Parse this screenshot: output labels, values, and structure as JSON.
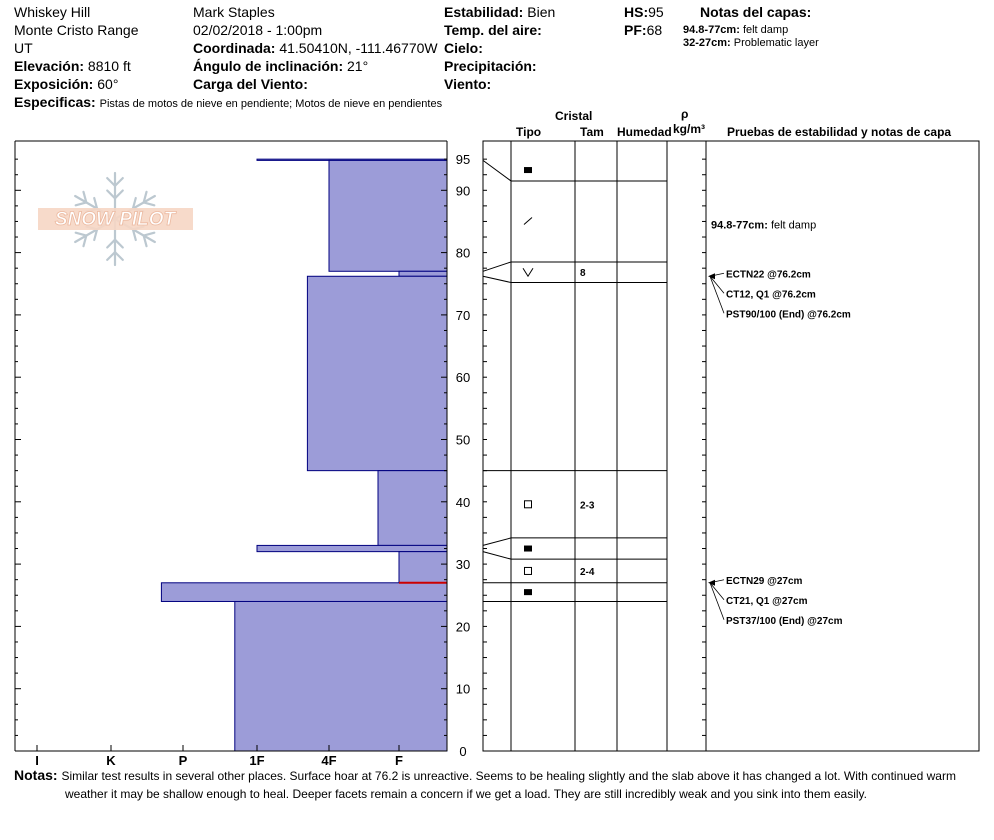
{
  "header": {
    "location": "Whiskey Hill",
    "range": "Monte Cristo Range",
    "state": "UT",
    "elevation_label": "Elevación:",
    "elevation_value": "8810 ft",
    "aspect_label": "Exposición:",
    "aspect_value": "60°",
    "specifics_label": "Especificas:",
    "specifics_value": "Pistas de motos de nieve en pendiente; Motos de nieve en pendientes",
    "observer": "Mark Staples",
    "datetime": "02/02/2018 - 1:00pm",
    "coord_label": "Coordinada:",
    "coord_value": "41.50410N, -111.46770W",
    "slope_label": "Ángulo de inclinación:",
    "slope_value": "21°",
    "wind_load_label": "Carga del Viento:",
    "stability_label": "Estabilidad:",
    "stability_value": "Bien",
    "air_temp_label": "Temp. del aire:",
    "sky_label": "Cielo:",
    "precip_label": "Precipitación:",
    "wind_label": "Viento:",
    "hs_label": "HS:",
    "hs_value": "95",
    "pf_label": "PF:",
    "pf_value": "68",
    "layer_notes_label": "Notas del capas:",
    "layer_notes": [
      {
        "range": "94.8-77cm:",
        "text": "felt damp"
      },
      {
        "range": "32-27cm:",
        "text": "Problematic layer"
      }
    ]
  },
  "logo_text": "SNOW PILOT",
  "columns": {
    "crystal": "Cristal",
    "type": "Tipo",
    "size": "Tam",
    "humidity": "Humedad",
    "rho": "ρ",
    "density_unit": "kg/m³",
    "tests": "Pruebas de estabilidad y notas de capa"
  },
  "chart_data": {
    "type": "bar",
    "x_categories": [
      "I",
      "K",
      "P",
      "1F",
      "4F",
      "F"
    ],
    "y_ticks": [
      0,
      10,
      20,
      30,
      40,
      50,
      60,
      70,
      80,
      90,
      95
    ],
    "ylim": [
      0,
      95
    ],
    "hardness_layers": [
      {
        "top": 95,
        "bottom": 94.8,
        "hardness": 3.0
      },
      {
        "top": 94.8,
        "bottom": 77,
        "hardness": 4.0
      },
      {
        "top": 77,
        "bottom": 76.2,
        "hardness": 5.0
      },
      {
        "top": 76.2,
        "bottom": 45,
        "hardness": 3.7
      },
      {
        "top": 45,
        "bottom": 33,
        "hardness": 4.7
      },
      {
        "top": 33,
        "bottom": 32,
        "hardness": 3.0
      },
      {
        "top": 32,
        "bottom": 27,
        "hardness": 5.0
      },
      {
        "top": 27,
        "bottom": 24,
        "hardness": 1.7
      },
      {
        "top": 24,
        "bottom": 0,
        "hardness": 2.7
      }
    ],
    "critical_layer_depth": 27,
    "grain_layers": [
      {
        "top": 95,
        "bottom": 91.5,
        "grain": "filled-square",
        "size": ""
      },
      {
        "top": 91.5,
        "bottom": 78.5,
        "grain": "slash",
        "size": ""
      },
      {
        "top": 78.5,
        "bottom": 75.2,
        "grain": "v",
        "size": "8"
      },
      {
        "top": 75.2,
        "bottom": 45,
        "grain": "",
        "size": ""
      },
      {
        "top": 45,
        "bottom": 34.2,
        "grain": "open-square",
        "size": "2-3"
      },
      {
        "top": 34.2,
        "bottom": 30.8,
        "grain": "filled-square",
        "size": ""
      },
      {
        "top": 30.8,
        "bottom": 27,
        "grain": "open-square",
        "size": "2-4"
      },
      {
        "top": 27,
        "bottom": 24,
        "grain": "filled-square",
        "size": ""
      }
    ],
    "profile_boundaries": [
      {
        "depth": 94.8,
        "grain_depth": 91.5
      },
      {
        "depth": 77,
        "grain_depth": 78.5
      },
      {
        "depth": 76.2,
        "grain_depth": 75.2
      },
      {
        "depth": 45,
        "grain_depth": 45
      },
      {
        "depth": 33,
        "grain_depth": 34.2
      },
      {
        "depth": 32,
        "grain_depth": 30.8
      },
      {
        "depth": 27,
        "grain_depth": 27
      },
      {
        "depth": 24,
        "grain_depth": 24
      }
    ],
    "layer_note_text": {
      "depth": 84.5,
      "range": "94.8-77cm:",
      "text": "felt damp"
    },
    "tests": [
      {
        "depth": 76.2,
        "results": [
          "ECTN22 @76.2cm",
          "CT12, Q1 @76.2cm",
          "PST90/100 (End) @76.2cm"
        ]
      },
      {
        "depth": 27,
        "results": [
          "ECTN29 @27cm",
          "CT21, Q1 @27cm",
          "PST37/100 (End) @27cm"
        ]
      }
    ],
    "colors": {
      "hardness_fill": "#9c9cd8",
      "hardness_edge": "#00007f",
      "critical_line": "#cc0000"
    }
  },
  "notes_label": "Notas:",
  "notes_line1": "Similar test results in several other places. Surface hoar at 76.2 is unreactive. Seems to be healing slightly and the slab above it has changed a lot. With continued warm",
  "notes_line2": "weather it may be shallow enough to heal. Deeper facets remain a concern if we get a load. They are still incredibly weak and you sink into them easily."
}
